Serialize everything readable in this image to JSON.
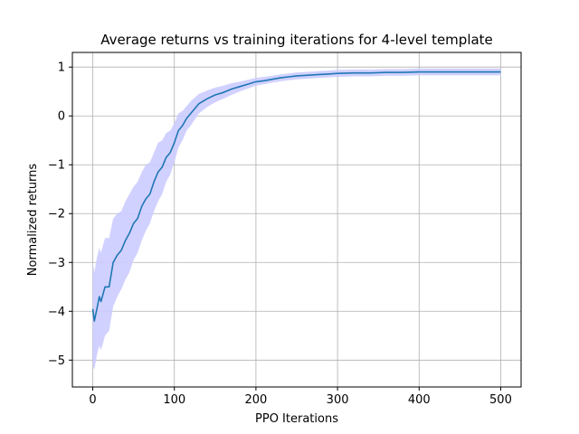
{
  "chart_data": {
    "type": "line",
    "title": "Average returns vs training iterations for 4-level template",
    "xlabel": "PPO Iterations",
    "ylabel": "Normalized returns",
    "xlim": [
      -25,
      525
    ],
    "ylim": [
      -5.55,
      1.3
    ],
    "xticks": [
      0,
      100,
      200,
      300,
      400,
      500
    ],
    "yticks": [
      -5,
      -4,
      -3,
      -2,
      -1,
      0,
      1
    ],
    "xtick_labels": [
      "0",
      "100",
      "200",
      "300",
      "400",
      "500"
    ],
    "ytick_labels": [
      "−5",
      "−4",
      "−3",
      "−2",
      "−1",
      "0",
      "1"
    ],
    "grid": true,
    "line_color": "#1f77b4",
    "band_color": "#ccccff",
    "series": [
      {
        "x": [
          0,
          2,
          5,
          8,
          10,
          15,
          20,
          25,
          30,
          35,
          40,
          45,
          50,
          55,
          60,
          65,
          70,
          75,
          80,
          85,
          90,
          95,
          100,
          105,
          110,
          115,
          120,
          130,
          140,
          150,
          160,
          170,
          180,
          190,
          200,
          210,
          220,
          230,
          240,
          250,
          260,
          270,
          280,
          290,
          300,
          320,
          340,
          360,
          380,
          400,
          420,
          440,
          460,
          480,
          500
        ],
        "y": [
          -3.95,
          -4.2,
          -3.95,
          -3.7,
          -3.8,
          -3.5,
          -3.5,
          -3.0,
          -2.85,
          -2.75,
          -2.55,
          -2.4,
          -2.2,
          -2.1,
          -1.85,
          -1.7,
          -1.6,
          -1.35,
          -1.15,
          -1.05,
          -0.85,
          -0.75,
          -0.55,
          -0.3,
          -0.2,
          -0.05,
          0.05,
          0.25,
          0.35,
          0.43,
          0.48,
          0.55,
          0.6,
          0.65,
          0.7,
          0.72,
          0.75,
          0.78,
          0.8,
          0.82,
          0.83,
          0.84,
          0.85,
          0.86,
          0.87,
          0.88,
          0.88,
          0.89,
          0.89,
          0.9,
          0.9,
          0.9,
          0.9,
          0.9,
          0.9
        ],
        "lower": [
          -5.1,
          -5.2,
          -4.9,
          -4.7,
          -4.8,
          -4.5,
          -4.4,
          -3.9,
          -3.7,
          -3.55,
          -3.35,
          -3.2,
          -2.95,
          -2.8,
          -2.55,
          -2.35,
          -2.2,
          -1.95,
          -1.75,
          -1.6,
          -1.35,
          -1.2,
          -0.95,
          -0.65,
          -0.5,
          -0.3,
          -0.2,
          0.05,
          0.18,
          0.28,
          0.35,
          0.43,
          0.5,
          0.56,
          0.62,
          0.65,
          0.68,
          0.71,
          0.73,
          0.75,
          0.76,
          0.77,
          0.78,
          0.79,
          0.8,
          0.81,
          0.81,
          0.82,
          0.82,
          0.83,
          0.83,
          0.83,
          0.83,
          0.83,
          0.83
        ],
        "upper": [
          -3.0,
          -3.2,
          -2.9,
          -2.7,
          -2.8,
          -2.5,
          -2.5,
          -2.1,
          -2.0,
          -1.95,
          -1.75,
          -1.6,
          -1.45,
          -1.35,
          -1.15,
          -1.0,
          -0.95,
          -0.75,
          -0.55,
          -0.5,
          -0.35,
          -0.3,
          -0.15,
          0.05,
          0.1,
          0.2,
          0.3,
          0.45,
          0.52,
          0.58,
          0.62,
          0.67,
          0.7,
          0.74,
          0.78,
          0.8,
          0.82,
          0.85,
          0.87,
          0.89,
          0.9,
          0.91,
          0.92,
          0.93,
          0.94,
          0.95,
          0.95,
          0.96,
          0.96,
          0.97,
          0.97,
          0.97,
          0.97,
          0.97,
          0.97
        ]
      }
    ]
  }
}
